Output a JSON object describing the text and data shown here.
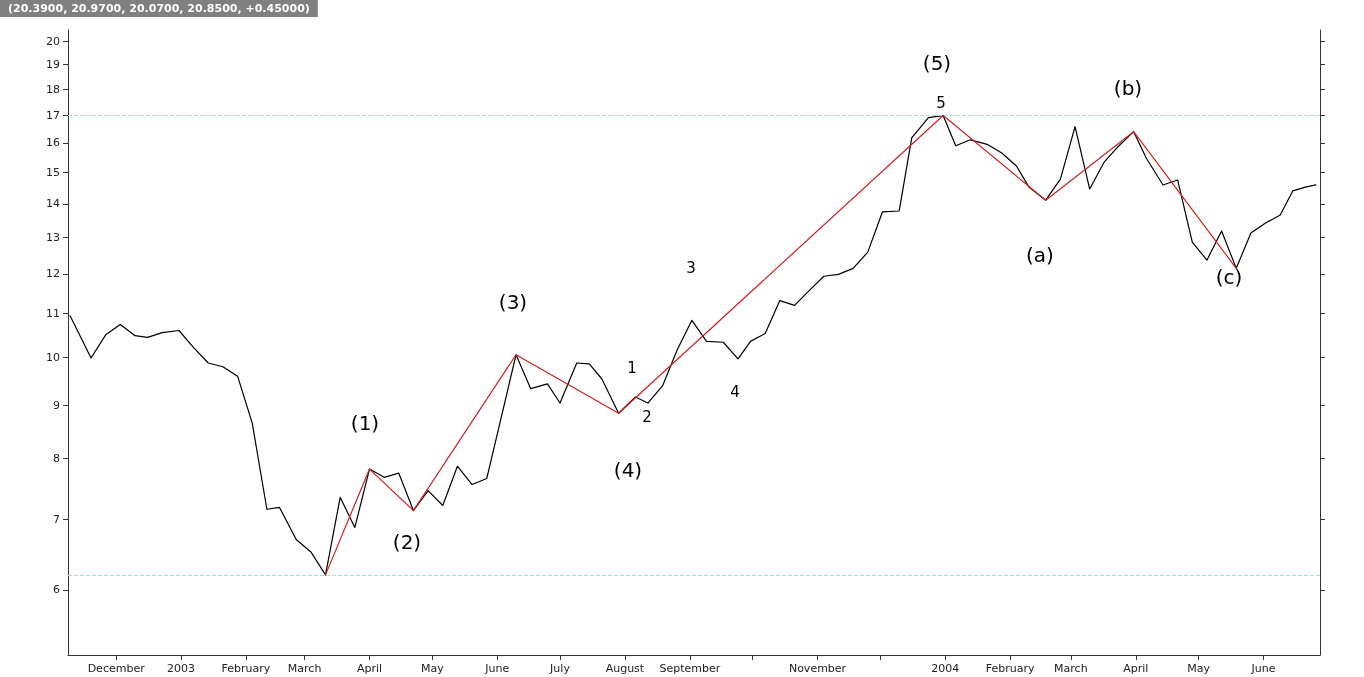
{
  "chart_data": {
    "type": "line",
    "title": "(20.3900, 20.9700, 20.0700, 20.8500, +0.45000)",
    "series": [
      {
        "color": "#000000",
        "x": [
          "2002-11-09",
          "2002-11-19",
          "2002-11-26",
          "2002-12-03",
          "2002-12-10",
          "2002-12-16",
          "2002-12-23",
          "2002-12-31",
          "2003-01-07",
          "2003-01-14",
          "2003-01-21",
          "2003-01-28",
          "2003-02-04",
          "2003-02-11",
          "2003-02-17",
          "2003-02-25",
          "2003-03-04",
          "2003-03-11",
          "2003-03-18",
          "2003-03-25",
          "2003-04-01",
          "2003-04-08",
          "2003-04-15",
          "2003-04-22",
          "2003-04-29",
          "2003-05-06",
          "2003-05-13",
          "2003-05-20",
          "2003-05-27",
          "2003-06-10",
          "2003-06-17",
          "2003-06-25",
          "2003-07-01",
          "2003-07-09",
          "2003-07-15",
          "2003-07-21",
          "2003-07-29",
          "2003-08-06",
          "2003-08-12",
          "2003-08-19",
          "2003-08-26",
          "2003-09-02",
          "2003-09-09",
          "2003-09-17",
          "2003-09-24",
          "2003-09-30",
          "2003-10-07",
          "2003-10-14",
          "2003-10-21",
          "2003-10-28",
          "2003-11-04",
          "2003-11-11",
          "2003-11-18",
          "2003-11-25",
          "2003-12-02",
          "2003-12-10",
          "2003-12-16",
          "2003-12-24",
          "2003-12-31",
          "2004-01-06",
          "2004-01-13",
          "2004-01-21",
          "2004-01-28",
          "2004-02-04",
          "2004-02-10",
          "2004-02-18",
          "2004-02-25",
          "2004-03-03",
          "2004-03-10",
          "2004-03-17",
          "2004-03-23",
          "2004-03-31",
          "2004-04-06",
          "2004-04-14",
          "2004-04-21",
          "2004-04-28",
          "2004-05-05",
          "2004-05-12",
          "2004-05-19",
          "2004-05-26",
          "2004-06-02",
          "2004-06-09",
          "2004-06-15",
          "2004-06-21",
          "2004-06-26"
        ],
        "values": [
          10.95,
          9.98,
          10.5,
          10.74,
          10.48,
          10.44,
          10.55,
          10.6,
          10.21,
          9.87,
          9.79,
          9.59,
          8.65,
          7.16,
          7.19,
          6.7,
          6.52,
          6.2,
          7.35,
          6.88,
          7.82,
          7.68,
          7.75,
          7.14,
          7.46,
          7.22,
          7.87,
          7.56,
          7.66,
          10.05,
          9.33,
          9.43,
          9.04,
          9.87,
          9.85,
          9.53,
          8.84,
          9.16,
          9.04,
          9.39,
          10.16,
          10.84,
          10.35,
          10.33,
          9.96,
          10.35,
          10.53,
          11.32,
          11.2,
          11.57,
          11.94,
          11.99,
          12.15,
          12.59,
          13.75,
          13.78,
          16.18,
          16.91,
          16.99,
          15.9,
          16.11,
          15.95,
          15.65,
          15.21,
          14.52,
          14.11,
          14.78,
          16.58,
          14.46,
          15.35,
          15.83,
          16.4,
          15.48,
          14.59,
          14.75,
          12.87,
          12.37,
          13.19,
          12.15,
          13.13,
          13.42,
          13.66,
          14.4,
          14.52,
          14.59
        ]
      },
      {
        "color": "#d02020",
        "x": [
          "2003-03-11",
          "2003-04-01",
          "2003-04-22",
          "2003-06-10",
          "2003-07-29",
          "2003-12-31",
          "2004-02-18",
          "2004-03-31",
          "2004-05-19"
        ],
        "values": [
          6.2,
          7.82,
          7.14,
          10.05,
          8.84,
          16.99,
          14.11,
          16.4,
          12.15
        ]
      }
    ],
    "xlim": [
      "2002-11-08",
      "2004-06-28"
    ],
    "xticks": [
      {
        "value": "2002-12-01",
        "label": "December"
      },
      {
        "value": "2003-01-01",
        "label": "2003"
      },
      {
        "value": "2003-02-01",
        "label": "February"
      },
      {
        "value": "2003-03-01",
        "label": "March"
      },
      {
        "value": "2003-04-01",
        "label": "April"
      },
      {
        "value": "2003-05-01",
        "label": "May"
      },
      {
        "value": "2003-06-01",
        "label": "June"
      },
      {
        "value": "2003-07-01",
        "label": "July"
      },
      {
        "value": "2003-08-01",
        "label": "August"
      },
      {
        "value": "2003-09-01",
        "label": "September"
      },
      {
        "value": "2003-10-01",
        "label": null
      },
      {
        "value": "2003-11-01",
        "label": "November"
      },
      {
        "value": "2003-12-01",
        "label": null
      },
      {
        "value": "2004-01-01",
        "label": "2004"
      },
      {
        "value": "2004-02-01",
        "label": "February"
      },
      {
        "value": "2004-03-01",
        "label": "March"
      },
      {
        "value": "2004-04-01",
        "label": "April"
      },
      {
        "value": "2004-05-01",
        "label": "May"
      },
      {
        "value": "2004-06-01",
        "label": "June"
      }
    ],
    "ylim": [
      5.2,
      20.5
    ],
    "yticks": [
      6,
      7,
      8,
      9,
      10,
      11,
      12,
      13,
      14,
      15,
      16,
      17,
      18,
      19,
      20
    ],
    "log": "y",
    "grid": false,
    "marker": "none",
    "line_style": "solid",
    "ref_lines": [
      {
        "axis": "y",
        "value": 17,
        "color": "#a8dce4",
        "line_style": "dashed"
      },
      {
        "axis": "y",
        "value": 6.2,
        "color": "#a8dce4",
        "line_style": "dashed"
      }
    ],
    "annotations": [
      "(1)",
      "(2)",
      "(3)",
      "(4)",
      "(5)",
      "5",
      "(a)",
      "(b)",
      "(c)",
      "1",
      "2",
      "3",
      "4"
    ]
  }
}
